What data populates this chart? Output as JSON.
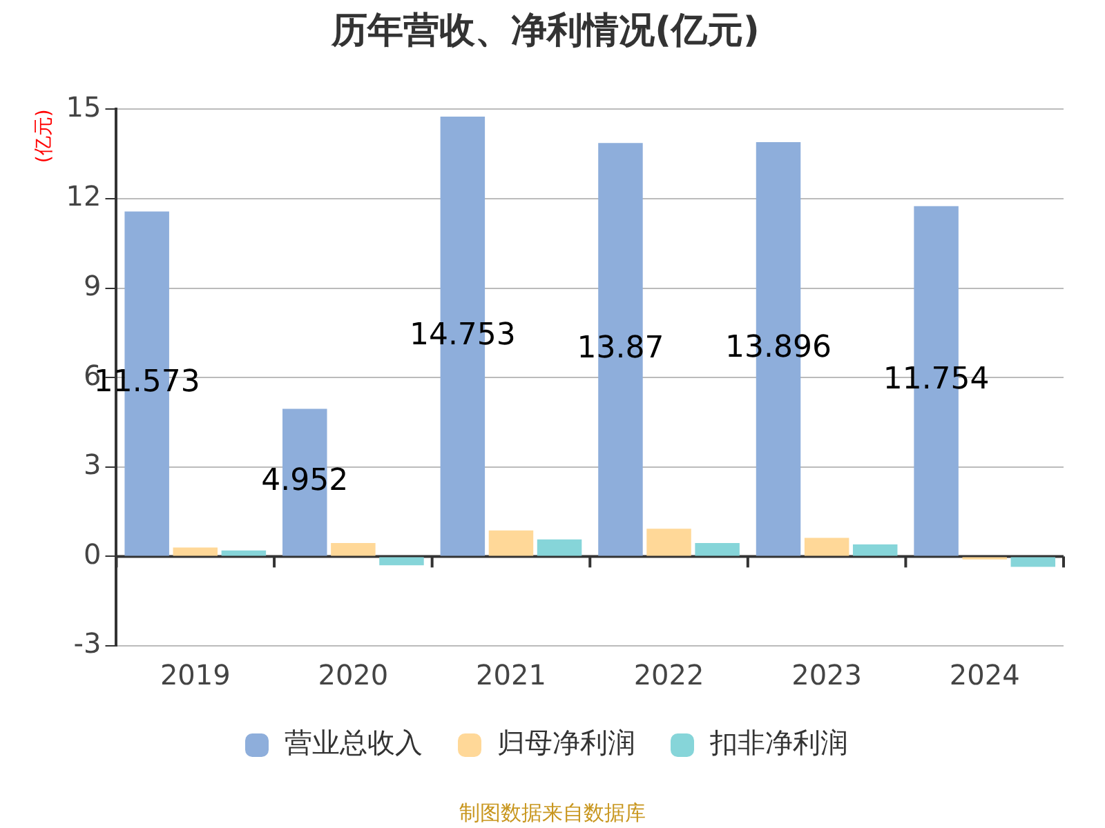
{
  "chart_data": {
    "type": "bar",
    "title": "历年营收、净利情况(亿元)",
    "ylabel": "(亿元)",
    "categories": [
      "2019",
      "2020",
      "2021",
      "2022",
      "2023",
      "2024"
    ],
    "series": [
      {
        "name": "营业总收入",
        "color": "#8eaedb",
        "values": [
          11.573,
          4.952,
          14.753,
          13.87,
          13.896,
          11.754
        ],
        "value_labels": [
          "11.573",
          "4.952",
          "14.753",
          "13.87",
          "13.896",
          "11.754"
        ]
      },
      {
        "name": "归母净利润",
        "color": "#ffd898",
        "values": [
          0.3,
          0.45,
          0.87,
          0.93,
          0.62,
          -0.1
        ]
      },
      {
        "name": "扣非净利润",
        "color": "#86d5d9",
        "values": [
          0.2,
          -0.3,
          0.57,
          0.45,
          0.4,
          -0.35
        ]
      }
    ],
    "ylim": [
      -3,
      15
    ],
    "yticks": [
      -3,
      0,
      3,
      6,
      9,
      12,
      15
    ],
    "grid": "y",
    "legend": "bottom",
    "annotations": [
      "制图数据来自数据库"
    ]
  }
}
